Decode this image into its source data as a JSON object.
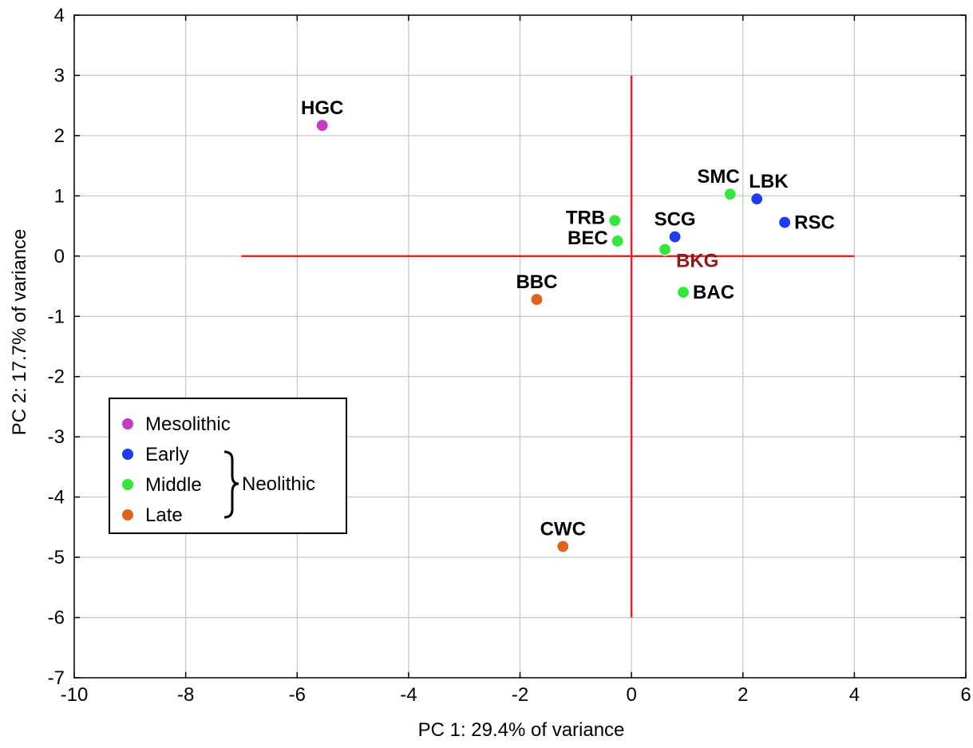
{
  "chart_data": {
    "type": "scatter",
    "xlabel": "PC 1: 29.4% of variance",
    "ylabel": "PC 2: 17.7% of variance",
    "xlim": [
      -10,
      6
    ],
    "ylim": [
      -7,
      4
    ],
    "x_ticks": [
      -10,
      -8,
      -6,
      -4,
      -2,
      0,
      2,
      4,
      6
    ],
    "y_ticks": [
      -7,
      -6,
      -5,
      -4,
      -3,
      -2,
      -1,
      0,
      1,
      2,
      3,
      4
    ],
    "grid": true,
    "reference_lines": {
      "horizontal": {
        "y": 0,
        "x_from": -7,
        "x_to": 4,
        "color": "#e8202a"
      },
      "vertical": {
        "x": 0,
        "y_from": -6,
        "y_to": 3,
        "color": "#e8202a"
      }
    },
    "series": [
      {
        "name": "Mesolithic",
        "color": "#c43bc4"
      },
      {
        "name": "Early",
        "color": "#1f3cf0"
      },
      {
        "name": "Middle",
        "color": "#33e83a"
      },
      {
        "name": "Late",
        "color": "#e0631d"
      }
    ],
    "points": [
      {
        "label": "HGC",
        "x": -5.55,
        "y": 2.17,
        "group": "Mesolithic",
        "label_pos": "above"
      },
      {
        "label": "LBK",
        "x": 2.25,
        "y": 0.95,
        "group": "Early",
        "label_pos": "above-right"
      },
      {
        "label": "RSC",
        "x": 2.75,
        "y": 0.56,
        "group": "Early",
        "label_pos": "right"
      },
      {
        "label": "SCG",
        "x": 0.78,
        "y": 0.32,
        "group": "Early",
        "label_pos": "above"
      },
      {
        "label": "SMC",
        "x": 1.77,
        "y": 1.03,
        "group": "Middle",
        "label_pos": "above-left"
      },
      {
        "label": "TRB",
        "x": -0.3,
        "y": 0.59,
        "group": "Middle",
        "label_pos": "left"
      },
      {
        "label": "BEC",
        "x": -0.25,
        "y": 0.25,
        "group": "Middle",
        "label_pos": "left"
      },
      {
        "label": "BKG",
        "x": 0.6,
        "y": 0.11,
        "group": "Middle",
        "label_pos": "below-right",
        "label_color": "#8b1a1a"
      },
      {
        "label": "BAC",
        "x": 0.93,
        "y": -0.6,
        "group": "Middle",
        "label_pos": "right"
      },
      {
        "label": "BBC",
        "x": -1.7,
        "y": -0.72,
        "group": "Late",
        "label_pos": "above"
      },
      {
        "label": "CWC",
        "x": -1.23,
        "y": -4.82,
        "group": "Late",
        "label_pos": "above"
      }
    ],
    "legend": {
      "placement": "bottom-left",
      "items": [
        {
          "label": "Mesolithic",
          "color": "#c43bc4"
        },
        {
          "label": "Early",
          "color": "#1f3cf0"
        },
        {
          "label": "Middle",
          "color": "#33e83a"
        },
        {
          "label": "Late",
          "color": "#e0631d"
        }
      ],
      "bracket_label": "Neolithic"
    }
  }
}
